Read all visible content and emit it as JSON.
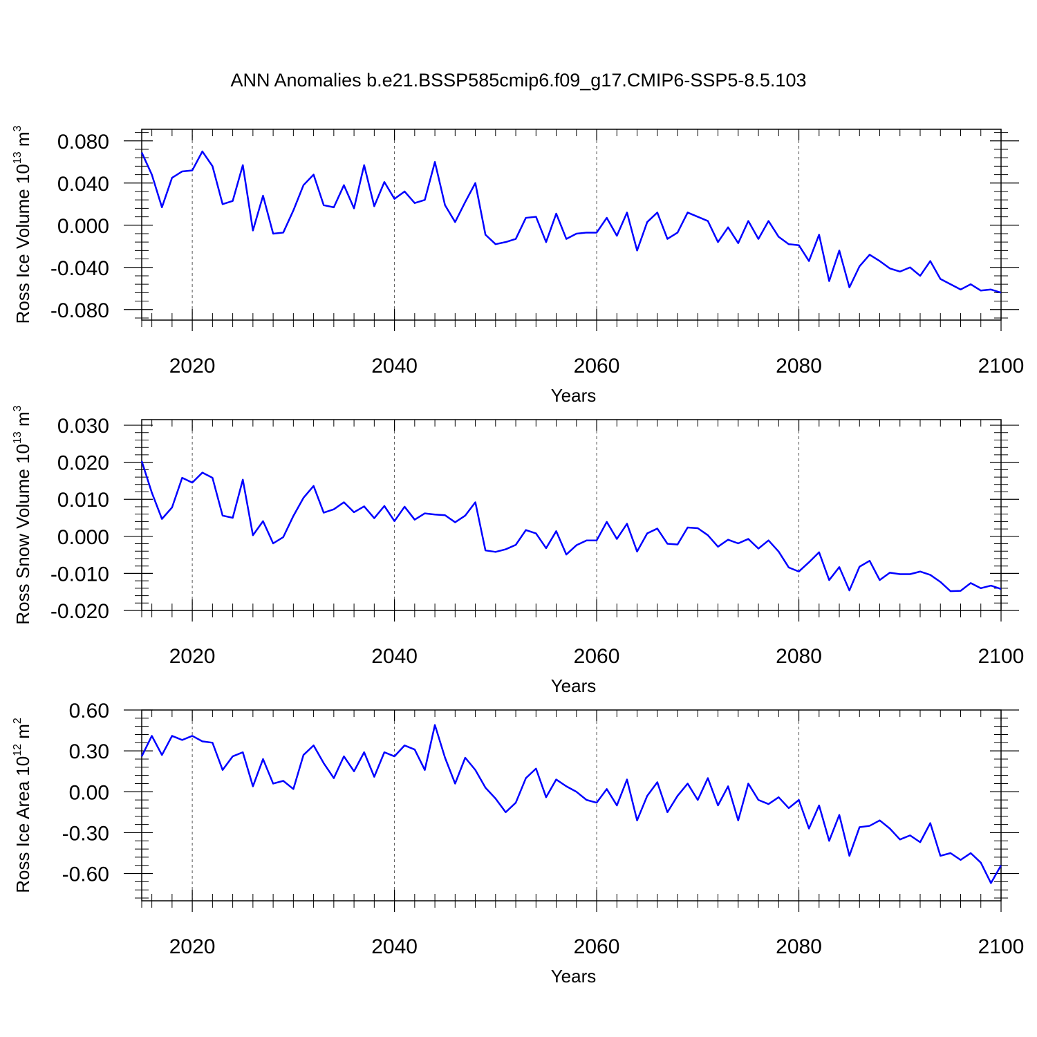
{
  "figure": {
    "title": "ANN Anomalies b.e21.BSSP585cmip6.f09_g17.CMIP6-SSP5-8.5.103"
  },
  "chart_data": [
    {
      "type": "line",
      "title": "",
      "ylabel_text": "Ross Ice Volume 10",
      "ylabel_exp": "13",
      "ylabel_unit": " m",
      "ylabel_unit_exp": "3",
      "xlabel": "Years",
      "xlim": [
        2015,
        2100
      ],
      "ylim": [
        -0.09,
        0.091
      ],
      "yticks": [
        -0.08,
        -0.04,
        0.0,
        0.04,
        0.08
      ],
      "ytick_labels": [
        "-0.080",
        "-0.040",
        "0.000",
        "0.040",
        "0.080"
      ],
      "xticks": [
        2020,
        2040,
        2060,
        2080,
        2100
      ],
      "xtick_labels": [
        "2020",
        "2040",
        "2060",
        "2080",
        "2100"
      ],
      "grid": "vertical dashed at major x ticks",
      "line_color": "#0000ff",
      "x_start": 2015,
      "values": [
        0.069,
        0.048,
        0.017,
        0.045,
        0.051,
        0.052,
        0.07,
        0.056,
        0.02,
        0.023,
        0.057,
        -0.005,
        0.028,
        -0.008,
        -0.007,
        0.014,
        0.038,
        0.048,
        0.019,
        0.017,
        0.038,
        0.016,
        0.057,
        0.018,
        0.041,
        0.025,
        0.032,
        0.021,
        0.024,
        0.06,
        0.019,
        0.003,
        0.022,
        0.04,
        -0.009,
        -0.018,
        -0.016,
        -0.013,
        0.007,
        0.008,
        -0.016,
        0.011,
        -0.013,
        -0.008,
        -0.007,
        -0.007,
        0.007,
        -0.01,
        0.012,
        -0.024,
        0.003,
        0.012,
        -0.013,
        -0.007,
        0.012,
        0.008,
        0.004,
        -0.016,
        -0.002,
        -0.017,
        0.004,
        -0.013,
        0.004,
        -0.011,
        -0.018,
        -0.019,
        -0.034,
        -0.009,
        -0.053,
        -0.024,
        -0.059,
        -0.039,
        -0.028,
        -0.034,
        -0.041,
        -0.044,
        -0.04,
        -0.048,
        -0.034,
        -0.051,
        -0.056,
        -0.061,
        -0.056,
        -0.062,
        -0.061,
        -0.064
      ]
    },
    {
      "type": "line",
      "title": "",
      "ylabel_text": "Ross Snow Volume 10",
      "ylabel_exp": "13",
      "ylabel_unit": " m",
      "ylabel_unit_exp": "3",
      "xlabel": "Years",
      "xlim": [
        2015,
        2100
      ],
      "ylim": [
        -0.02,
        0.0315
      ],
      "yticks": [
        -0.02,
        -0.01,
        0.0,
        0.01,
        0.02,
        0.03
      ],
      "ytick_labels": [
        "-0.020",
        "-0.010",
        "0.000",
        "0.010",
        "0.020",
        "0.030"
      ],
      "xticks": [
        2020,
        2040,
        2060,
        2080,
        2100
      ],
      "xtick_labels": [
        "2020",
        "2040",
        "2060",
        "2080",
        "2100"
      ],
      "grid": "vertical dashed at major x ticks",
      "line_color": "#0000ff",
      "x_start": 2015,
      "values": [
        0.0203,
        0.0118,
        0.0047,
        0.0078,
        0.0158,
        0.0145,
        0.0172,
        0.0158,
        0.0056,
        0.005,
        0.0153,
        0.0003,
        0.0041,
        -0.0019,
        -0.0002,
        0.0055,
        0.0104,
        0.0136,
        0.0064,
        0.0073,
        0.0092,
        0.0065,
        0.0081,
        0.0049,
        0.0082,
        0.0041,
        0.008,
        0.0045,
        0.0062,
        0.0059,
        0.0057,
        0.0038,
        0.0056,
        0.0092,
        -0.0038,
        -0.0042,
        -0.0035,
        -0.0023,
        0.0017,
        0.0008,
        -0.0032,
        0.0014,
        -0.0049,
        -0.0024,
        -0.0011,
        -0.0011,
        0.0039,
        -0.0007,
        0.0034,
        -0.0041,
        0.0008,
        0.0021,
        -0.002,
        -0.0022,
        0.0024,
        0.0022,
        0.0003,
        -0.0028,
        -0.0009,
        -0.0019,
        -0.0007,
        -0.0033,
        -0.0011,
        -0.0041,
        -0.0084,
        -0.0095,
        -0.007,
        -0.0043,
        -0.0118,
        -0.0083,
        -0.0146,
        -0.0082,
        -0.0066,
        -0.0118,
        -0.0098,
        -0.0102,
        -0.0102,
        -0.0095,
        -0.0104,
        -0.0123,
        -0.0148,
        -0.0147,
        -0.0126,
        -0.014,
        -0.0133,
        -0.0142
      ]
    },
    {
      "type": "line",
      "title": "",
      "ylabel_text": "Ross Ice Area 10",
      "ylabel_exp": "12",
      "ylabel_unit": " m",
      "ylabel_unit_exp": "2",
      "xlabel": "Years",
      "xlim": [
        2015,
        2100
      ],
      "ylim": [
        -0.8,
        0.6
      ],
      "yticks": [
        -0.6,
        -0.3,
        0.0,
        0.3,
        0.6
      ],
      "ytick_labels": [
        "-0.60",
        "-0.30",
        "0.00",
        "0.30",
        "0.60"
      ],
      "xticks": [
        2020,
        2040,
        2060,
        2080,
        2100
      ],
      "xtick_labels": [
        "2020",
        "2040",
        "2060",
        "2080",
        "2100"
      ],
      "grid": "vertical dashed at major x ticks",
      "line_color": "#0000ff",
      "x_start": 2015,
      "values": [
        0.26,
        0.41,
        0.27,
        0.41,
        0.38,
        0.41,
        0.37,
        0.36,
        0.16,
        0.26,
        0.29,
        0.04,
        0.24,
        0.06,
        0.08,
        0.02,
        0.27,
        0.34,
        0.21,
        0.1,
        0.26,
        0.15,
        0.29,
        0.11,
        0.29,
        0.26,
        0.34,
        0.31,
        0.16,
        0.49,
        0.25,
        0.06,
        0.25,
        0.16,
        0.03,
        -0.05,
        -0.15,
        -0.08,
        0.1,
        0.17,
        -0.04,
        0.09,
        0.04,
        0.0,
        -0.06,
        -0.08,
        0.02,
        -0.1,
        0.09,
        -0.21,
        -0.03,
        0.07,
        -0.15,
        -0.03,
        0.06,
        -0.06,
        0.1,
        -0.1,
        0.04,
        -0.21,
        0.06,
        -0.06,
        -0.09,
        -0.04,
        -0.12,
        -0.06,
        -0.27,
        -0.1,
        -0.36,
        -0.17,
        -0.47,
        -0.26,
        -0.25,
        -0.21,
        -0.27,
        -0.35,
        -0.32,
        -0.37,
        -0.23,
        -0.47,
        -0.45,
        -0.5,
        -0.45,
        -0.52,
        -0.67,
        -0.54
      ]
    }
  ]
}
